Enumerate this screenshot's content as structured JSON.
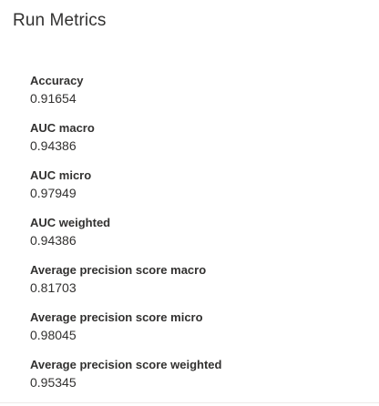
{
  "panel": {
    "title": "Run Metrics"
  },
  "metrics": [
    {
      "label": "Accuracy",
      "value": "0.91654"
    },
    {
      "label": "AUC macro",
      "value": "0.94386"
    },
    {
      "label": "AUC micro",
      "value": "0.97949"
    },
    {
      "label": "AUC weighted",
      "value": "0.94386"
    },
    {
      "label": "Average precision score macro",
      "value": "0.81703"
    },
    {
      "label": "Average precision score micro",
      "value": "0.98045"
    },
    {
      "label": "Average precision score weighted",
      "value": "0.95345"
    }
  ]
}
